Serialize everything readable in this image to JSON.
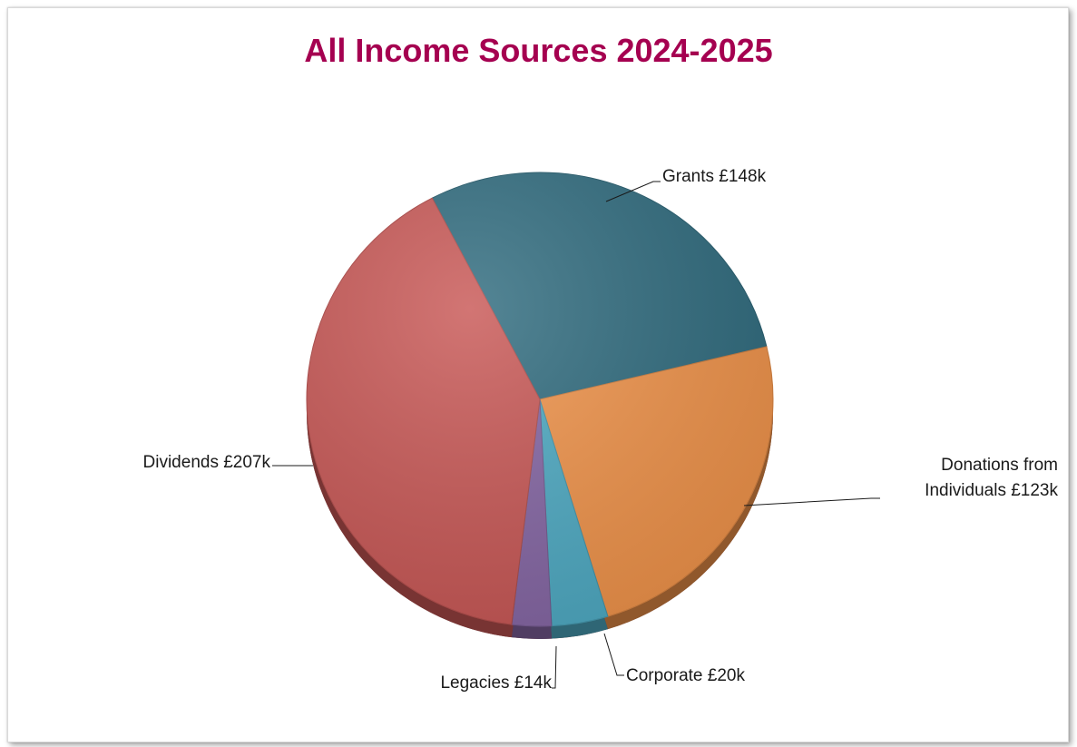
{
  "chart_data": {
    "type": "pie",
    "title": "All Income Sources 2024-2025",
    "slices": [
      {
        "label": "Grants £148k",
        "value": 148,
        "color": "#2f6b7e"
      },
      {
        "label": "Donations from Individuals £123k",
        "label_lines": [
          "Donations from",
          "Individuals £123k"
        ],
        "value": 123,
        "color": "#f0934a"
      },
      {
        "label": "Corporate  £20k",
        "value": 20,
        "color": "#4eaac3"
      },
      {
        "label": "Legacies  £14k",
        "value": 14,
        "color": "#8566a4"
      },
      {
        "label": "Dividends £207k",
        "value": 207,
        "color": "#c85755"
      }
    ],
    "legend": "none",
    "style": "3d-pie"
  }
}
